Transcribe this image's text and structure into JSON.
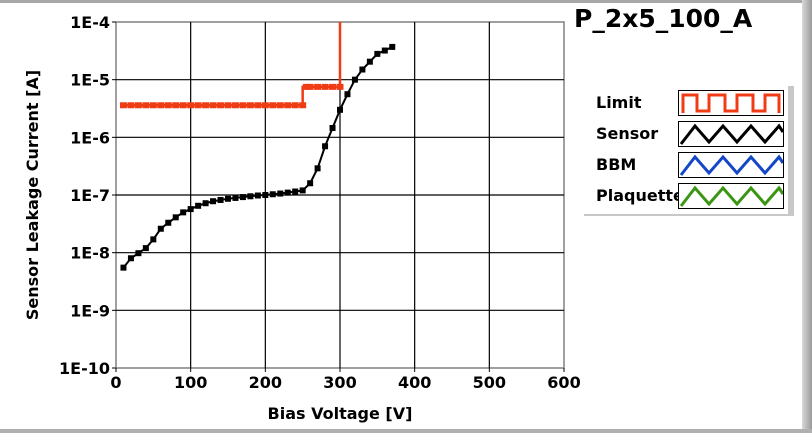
{
  "title": "P_2x5_100_A",
  "chart_data": {
    "type": "line",
    "title": "P_2x5_100_A",
    "xlabel": "Bias Voltage [V]",
    "ylabel": "Sensor Leakage Current [A]",
    "xlim": [
      0,
      600
    ],
    "ylim": [
      1e-10,
      0.0001
    ],
    "yscale": "log",
    "grid": true,
    "xticks": [
      "0",
      "100",
      "200",
      "300",
      "400",
      "500",
      "600"
    ],
    "yticks": [
      "1E-4",
      "1E-5",
      "1E-6",
      "1E-7",
      "1E-8",
      "1E-9",
      "1E-10"
    ],
    "legend_placement": "right",
    "series": [
      {
        "name": "Limit",
        "color": "#f03c14",
        "x": [
          10,
          20,
          30,
          40,
          50,
          60,
          70,
          80,
          90,
          100,
          110,
          120,
          130,
          140,
          150,
          160,
          170,
          180,
          190,
          200,
          210,
          220,
          230,
          240,
          250,
          255,
          260,
          270,
          280,
          290,
          300,
          300
        ],
        "y": [
          3.6e-06,
          3.6e-06,
          3.6e-06,
          3.6e-06,
          3.6e-06,
          3.6e-06,
          3.6e-06,
          3.6e-06,
          3.6e-06,
          3.6e-06,
          3.6e-06,
          3.6e-06,
          3.6e-06,
          3.6e-06,
          3.6e-06,
          3.6e-06,
          3.6e-06,
          3.6e-06,
          3.6e-06,
          3.6e-06,
          3.6e-06,
          3.6e-06,
          3.6e-06,
          3.6e-06,
          3.6e-06,
          7.5e-06,
          7.5e-06,
          7.5e-06,
          7.5e-06,
          7.5e-06,
          7.5e-06,
          0.0001
        ]
      },
      {
        "name": "Sensor",
        "color": "#000000",
        "x": [
          10,
          20,
          30,
          40,
          50,
          60,
          70,
          80,
          90,
          100,
          110,
          120,
          130,
          140,
          150,
          160,
          170,
          180,
          190,
          200,
          210,
          220,
          230,
          240,
          250,
          260,
          270,
          280,
          290,
          300,
          310,
          320,
          330,
          340,
          350,
          360,
          370
        ],
        "y": [
          5.5e-09,
          8e-09,
          9.8e-09,
          1.2e-08,
          1.7e-08,
          2.6e-08,
          3.3e-08,
          4.1e-08,
          5e-08,
          5.7e-08,
          6.5e-08,
          7.2e-08,
          7.8e-08,
          8.2e-08,
          8.6e-08,
          8.9e-08,
          9.2e-08,
          9.5e-08,
          9.8e-08,
          1e-07,
          1.03e-07,
          1.06e-07,
          1.1e-07,
          1.15e-07,
          1.2e-07,
          1.6e-07,
          2.9e-07,
          7e-07,
          1.45e-06,
          3e-06,
          5.6e-06,
          1e-05,
          1.5e-05,
          2.05e-05,
          2.8e-05,
          3.2e-05,
          3.7e-05
        ]
      },
      {
        "name": "BBM",
        "color": "#1446c8",
        "x": [],
        "y": []
      },
      {
        "name": "Plaquette",
        "color": "#3c9614",
        "x": [],
        "y": []
      }
    ]
  }
}
